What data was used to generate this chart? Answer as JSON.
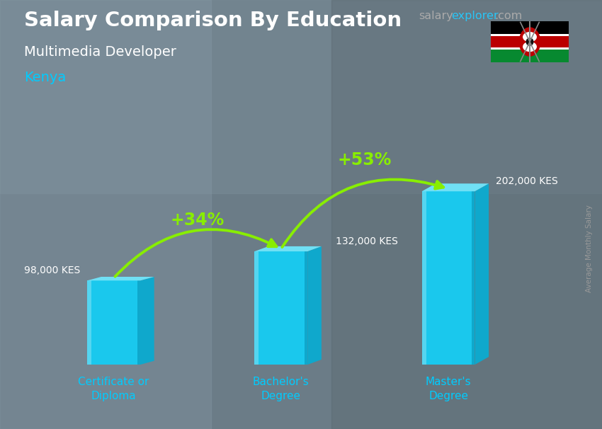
{
  "title_main": "Salary Comparison By Education",
  "title_sub": "Multimedia Developer",
  "title_country": "Kenya",
  "website_salary": "salary",
  "website_explorer": "explorer",
  "website_com": ".com",
  "ylabel": "Average Monthly Salary",
  "categories": [
    "Certificate or\nDiploma",
    "Bachelor's\nDegree",
    "Master's\nDegree"
  ],
  "values": [
    98000,
    132000,
    202000
  ],
  "value_labels": [
    "98,000 KES",
    "132,000 KES",
    "202,000 KES"
  ],
  "pct_labels": [
    "+34%",
    "+53%"
  ],
  "bar_color_front": "#1ac8ed",
  "bar_color_top": "#70e0f5",
  "bar_color_right": "#0fa8cc",
  "bar_color_left_edge": "#55d5f0",
  "bg_color": "#7a8a95",
  "title_color": "#ffffff",
  "subtitle_color": "#ffffff",
  "country_color": "#00ccff",
  "cat_color": "#00ccff",
  "value_color": "#ffffff",
  "pct_color": "#88ee00",
  "arrow_color": "#88ee00",
  "website_salary_color": "#aaaaaa",
  "website_explorer_color": "#29c5f6",
  "website_com_color": "#aaaaaa",
  "right_label_color": "#999999",
  "ylim": [
    0,
    250000
  ],
  "bar_width": 0.38,
  "positions": [
    1.0,
    2.2,
    3.4
  ],
  "xlim": [
    0.4,
    4.2
  ]
}
